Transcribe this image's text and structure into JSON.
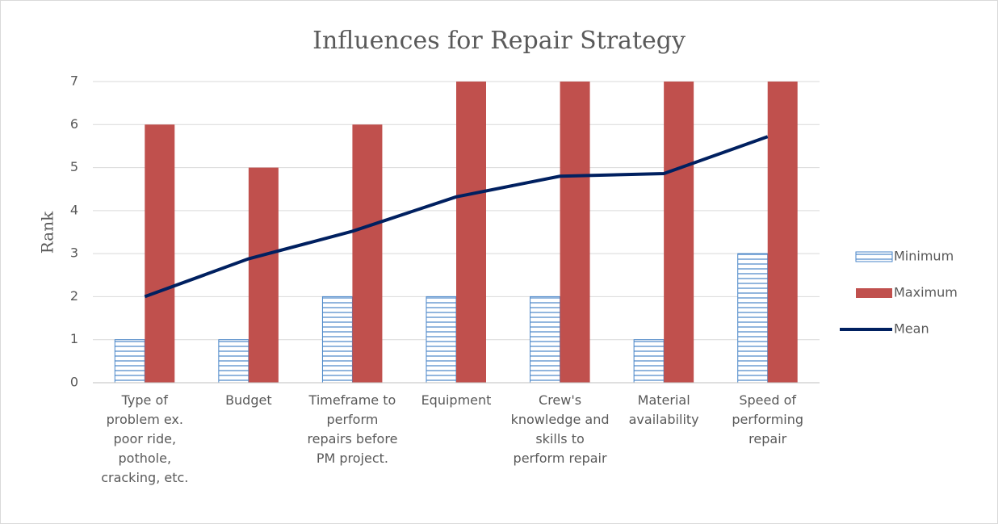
{
  "chart_data": {
    "type": "bar",
    "title": "Influences for Repair Strategy",
    "y_label": "Rank",
    "categories": [
      "Type of problem ex. poor ride, pothole, cracking, etc.",
      "Budget",
      "Timeframe to perform repairs before PM project.",
      "Equipment",
      "Crew's knowledge and skills to perform repair",
      "Material availability",
      "Speed of performing repair"
    ],
    "series": [
      {
        "name": "Minimum",
        "type": "bar",
        "pattern": "horizontal-lines",
        "color": "#4a86c8",
        "values": [
          1,
          1,
          2,
          2,
          2,
          1,
          3
        ]
      },
      {
        "name": "Maximum",
        "type": "bar",
        "color": "#c0504d",
        "values": [
          6,
          5,
          6,
          7,
          7,
          7,
          7
        ]
      },
      {
        "name": "Mean",
        "type": "line",
        "color": "#002060",
        "values": [
          2.0,
          2.88,
          3.52,
          4.32,
          4.8,
          4.86,
          5.72
        ]
      }
    ],
    "ylim": [
      0,
      7
    ],
    "yticks": [
      0,
      1,
      2,
      3,
      4,
      5,
      6,
      7
    ],
    "grid": true,
    "legend": "right"
  }
}
